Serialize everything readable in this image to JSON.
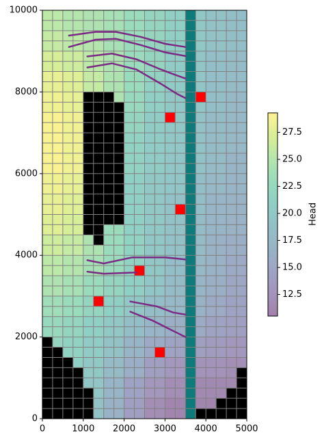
{
  "chart_data": {
    "type": "heatmap",
    "xlim": [
      0,
      5000
    ],
    "ylim": [
      0,
      10000
    ],
    "xticks": [
      0,
      1000,
      2000,
      3000,
      4000,
      5000
    ],
    "yticks": [
      0,
      2000,
      4000,
      6000,
      8000,
      10000
    ],
    "cell_size": 250,
    "grid_color": "#808080",
    "colormap": "viridis",
    "alpha": 0.5,
    "head": {
      "block": 500,
      "x": [
        250,
        750,
        1250,
        1750,
        2250,
        2750,
        3250,
        3750,
        4250,
        4750
      ],
      "y": [
        9750,
        9250,
        8750,
        8250,
        7750,
        7250,
        6750,
        6250,
        5750,
        5250,
        4750,
        4250,
        3750,
        3250,
        2750,
        2250,
        1750,
        1250,
        750,
        250
      ],
      "values": [
        [
          25.5,
          25,
          24.5,
          24,
          23,
          22,
          21,
          20,
          19,
          18.5
        ],
        [
          26,
          25.5,
          25,
          24,
          23,
          22,
          21,
          20,
          19,
          18.5
        ],
        [
          27,
          26.5,
          25.5,
          24.5,
          23,
          22,
          20.5,
          19.5,
          18.5,
          18
        ],
        [
          28,
          27.5,
          26,
          24.5,
          23,
          21.5,
          20.5,
          19.5,
          18.5,
          18
        ],
        [
          28.5,
          28,
          26.5,
          24.5,
          22.5,
          21,
          20,
          19.5,
          18.5,
          17.5
        ],
        [
          29,
          28.5,
          27,
          24,
          22,
          20.5,
          20,
          19,
          18,
          17.5
        ],
        [
          29,
          28.5,
          27,
          23.5,
          21.5,
          20.5,
          20,
          19,
          18,
          17.5
        ],
        [
          29,
          28.5,
          27,
          23.5,
          21.5,
          20.5,
          19.5,
          19,
          18,
          17
        ],
        [
          28.5,
          28,
          26.5,
          23,
          21,
          20,
          19.5,
          18.5,
          17.5,
          17
        ],
        [
          28,
          27.5,
          26,
          22.5,
          21,
          20,
          19,
          18.5,
          17,
          16.5
        ],
        [
          27.5,
          27,
          25.5,
          23,
          21,
          20,
          19,
          18,
          17,
          16.5
        ],
        [
          26.5,
          26,
          24.5,
          23,
          21.5,
          20,
          19,
          18,
          16.5,
          16
        ],
        [
          25.5,
          25,
          24,
          23,
          21.5,
          20,
          18.5,
          17.5,
          16.5,
          15.5
        ],
        [
          24.5,
          24,
          23,
          22,
          21,
          19.5,
          18,
          17,
          16,
          15
        ],
        [
          23.5,
          23,
          22,
          21,
          20,
          18.5,
          17.5,
          16.5,
          15.5,
          14.5
        ],
        [
          22.5,
          22,
          21,
          20,
          18.5,
          17,
          16,
          15.5,
          14.5,
          14
        ],
        [
          22,
          21.5,
          20.5,
          19,
          17,
          15.5,
          14.5,
          14,
          13.5,
          13
        ],
        [
          21.5,
          21,
          20,
          18,
          16,
          14,
          13,
          12.5,
          12.5,
          12
        ],
        [
          21,
          20.5,
          19.5,
          17,
          14.5,
          13,
          12,
          11.5,
          11.5,
          11.5
        ],
        [
          21,
          20.5,
          19,
          16.5,
          14,
          12,
          11,
          11,
          11,
          11
        ]
      ]
    },
    "inactive": {
      "color": "#000000",
      "cells": [
        [
          1000,
          4500,
          1500,
          8000
        ],
        [
          1250,
          4250,
          1500,
          4500
        ],
        [
          1500,
          4750,
          1750,
          8000
        ],
        [
          1750,
          4750,
          2000,
          7750
        ],
        [
          0,
          0,
          250,
          2000
        ],
        [
          250,
          0,
          500,
          1750
        ],
        [
          500,
          0,
          750,
          1500
        ],
        [
          750,
          0,
          1000,
          1250
        ],
        [
          1000,
          0,
          1250,
          750
        ],
        [
          3750,
          0,
          4250,
          250
        ],
        [
          4250,
          0,
          4500,
          500
        ],
        [
          4500,
          0,
          4750,
          750
        ],
        [
          4750,
          0,
          5000,
          1250
        ]
      ]
    },
    "constant_head": {
      "color": "#0f7a7a",
      "cells": [
        [
          3500,
          0,
          3750,
          10000
        ]
      ]
    },
    "wells": {
      "color": "#ff0000",
      "cells": [
        [
          3750,
          7750,
          4000,
          8000
        ],
        [
          3000,
          7250,
          3250,
          7500
        ],
        [
          3250,
          5000,
          3500,
          5250
        ],
        [
          2250,
          3500,
          2500,
          3750
        ],
        [
          1250,
          2750,
          1500,
          3000
        ],
        [
          2750,
          1500,
          3000,
          1750
        ]
      ]
    },
    "rivers": {
      "color": "#7b2a84",
      "lines": [
        {
          "x": [
            650,
            1300,
            1800,
            2400,
            3000,
            3500
          ],
          "y": [
            9380,
            9470,
            9470,
            9350,
            9180,
            9100
          ]
        },
        {
          "x": [
            650,
            1300,
            1800,
            2400,
            3000,
            3500
          ],
          "y": [
            9100,
            9280,
            9300,
            9150,
            8970,
            8880
          ]
        },
        {
          "x": [
            1100,
            1700,
            2300,
            2900,
            3300,
            3500
          ],
          "y": [
            8870,
            8940,
            8800,
            8550,
            8400,
            8330
          ]
        },
        {
          "x": [
            1100,
            1700,
            2300,
            2900,
            3300,
            3500
          ],
          "y": [
            8600,
            8700,
            8550,
            8200,
            7950,
            7850
          ]
        },
        {
          "x": [
            1100,
            1500,
            2200,
            3000,
            3500
          ],
          "y": [
            3880,
            3800,
            3950,
            3950,
            3900
          ]
        },
        {
          "x": [
            1100,
            1500,
            2300
          ],
          "y": [
            3600,
            3550,
            3580
          ]
        },
        {
          "x": [
            2150,
            2800,
            3200,
            3500
          ],
          "y": [
            2870,
            2750,
            2600,
            2550
          ]
        },
        {
          "x": [
            2150,
            2700,
            3100,
            3500
          ],
          "y": [
            2620,
            2400,
            2200,
            2000
          ]
        }
      ]
    },
    "colorbar": {
      "label": "Head",
      "lim": [
        10.5,
        29.3
      ],
      "ticks": [
        {
          "value": 12.5,
          "label": "12.5"
        },
        {
          "value": 15,
          "label": "15.0"
        },
        {
          "value": 17.5,
          "label": "17.5"
        },
        {
          "value": 20,
          "label": "20.0"
        },
        {
          "value": 22.5,
          "label": "22.5"
        },
        {
          "value": 25,
          "label": "25.0"
        },
        {
          "value": 27.5,
          "label": "27.5"
        }
      ]
    }
  }
}
